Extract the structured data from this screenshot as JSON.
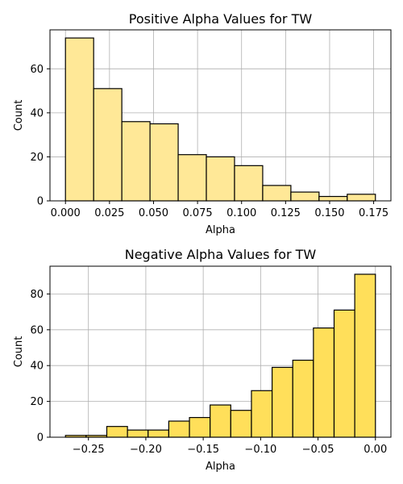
{
  "chart_data": [
    {
      "type": "bar",
      "title": "Positive Alpha Values for TW",
      "xlabel": "Alpha",
      "ylabel": "Count",
      "bar_color": "#ffe897",
      "grid": true,
      "xlim": [
        -0.0088,
        0.1848
      ],
      "ylim": [
        0,
        77.7
      ],
      "xticks": [
        0.0,
        0.025,
        0.05,
        0.075,
        0.1,
        0.125,
        0.15,
        0.175
      ],
      "xtick_labels": [
        "0.000",
        "0.025",
        "0.050",
        "0.075",
        "0.100",
        "0.125",
        "0.150",
        "0.175"
      ],
      "yticks": [
        0,
        20,
        40,
        60
      ],
      "ytick_labels": [
        "0",
        "20",
        "40",
        "60"
      ],
      "bins": [
        {
          "x0": 0.0,
          "x1": 0.016,
          "count": 74
        },
        {
          "x0": 0.016,
          "x1": 0.032,
          "count": 51
        },
        {
          "x0": 0.032,
          "x1": 0.048,
          "count": 36
        },
        {
          "x0": 0.048,
          "x1": 0.064,
          "count": 35
        },
        {
          "x0": 0.064,
          "x1": 0.08,
          "count": 21
        },
        {
          "x0": 0.08,
          "x1": 0.096,
          "count": 20
        },
        {
          "x0": 0.096,
          "x1": 0.112,
          "count": 16
        },
        {
          "x0": 0.112,
          "x1": 0.128,
          "count": 7
        },
        {
          "x0": 0.128,
          "x1": 0.144,
          "count": 4
        },
        {
          "x0": 0.144,
          "x1": 0.16,
          "count": 2
        },
        {
          "x0": 0.16,
          "x1": 0.176,
          "count": 3
        }
      ]
    },
    {
      "type": "bar",
      "title": "Negative Alpha Values for TW",
      "xlabel": "Alpha",
      "ylabel": "Count",
      "bar_color": "#ffdf5a",
      "grid": true,
      "xlim": [
        -0.2835,
        0.0135
      ],
      "ylim": [
        0,
        95.5
      ],
      "xticks": [
        -0.25,
        -0.2,
        -0.15,
        -0.1,
        -0.05,
        0.0
      ],
      "xtick_labels": [
        "−0.25",
        "−0.20",
        "−0.15",
        "−0.10",
        "−0.05",
        "0.00"
      ],
      "yticks": [
        0,
        20,
        40,
        60,
        80
      ],
      "ytick_labels": [
        "0",
        "20",
        "40",
        "60",
        "80"
      ],
      "bins": [
        {
          "x0": -0.27,
          "x1": -0.252,
          "count": 1
        },
        {
          "x0": -0.252,
          "x1": -0.234,
          "count": 1
        },
        {
          "x0": -0.234,
          "x1": -0.216,
          "count": 6
        },
        {
          "x0": -0.216,
          "x1": -0.198,
          "count": 4
        },
        {
          "x0": -0.198,
          "x1": -0.18,
          "count": 4
        },
        {
          "x0": -0.18,
          "x1": -0.162,
          "count": 9
        },
        {
          "x0": -0.162,
          "x1": -0.144,
          "count": 11
        },
        {
          "x0": -0.144,
          "x1": -0.126,
          "count": 18
        },
        {
          "x0": -0.126,
          "x1": -0.108,
          "count": 15
        },
        {
          "x0": -0.108,
          "x1": -0.09,
          "count": 26
        },
        {
          "x0": -0.09,
          "x1": -0.072,
          "count": 39
        },
        {
          "x0": -0.072,
          "x1": -0.054,
          "count": 43
        },
        {
          "x0": -0.054,
          "x1": -0.036,
          "count": 61
        },
        {
          "x0": -0.036,
          "x1": -0.018,
          "count": 71
        },
        {
          "x0": -0.018,
          "x1": 0.0,
          "count": 91
        }
      ]
    }
  ]
}
